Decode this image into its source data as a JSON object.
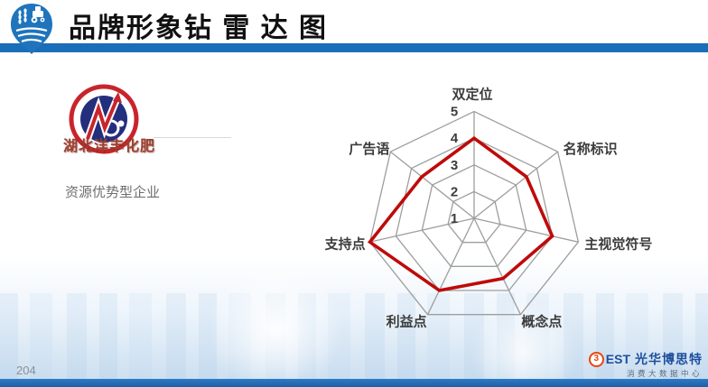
{
  "header": {
    "title": "品牌形象钻 雷 达 图"
  },
  "company": {
    "logo_text": "湖北洋丰化肥",
    "category": "资源优势型企业"
  },
  "chart_data": {
    "type": "radar",
    "categories": [
      "双定位",
      "名称标识",
      "主视觉符号",
      "概念点",
      "利益点",
      "支持点",
      "广告语"
    ],
    "values": [
      4,
      3.5,
      4,
      3.5,
      4,
      5,
      3.5
    ],
    "scale": {
      "min": 1,
      "max": 5,
      "ticks": [
        1,
        2,
        3,
        4,
        5
      ]
    },
    "grid": "on",
    "legend": "none",
    "line_color": "#bf0a0a",
    "grid_color": "#9e9e9e",
    "label_color": "#3c3c3c"
  },
  "footer": {
    "page_number": "204",
    "brand": {
      "mark": "3",
      "est": "EST",
      "name": "光华博思特",
      "subtitle": "消费大数据中心"
    }
  },
  "colors": {
    "accent_blue": "#1a6db8",
    "bottom_bar_blue": "#1b5fa8",
    "title_black": "#111111",
    "client_caption_red": "#9c3f2f",
    "logo_ring_red": "#c9242b",
    "logo_navy": "#232e7d"
  }
}
